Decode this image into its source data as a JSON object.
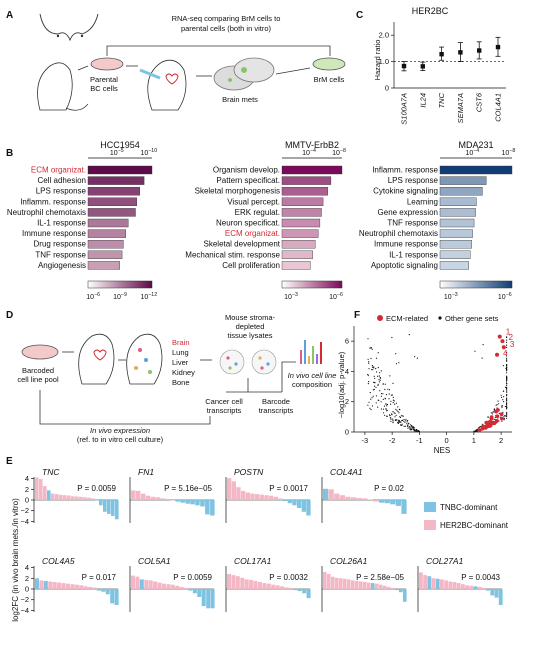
{
  "panels": {
    "A": {
      "letter": "A",
      "rnaseq_line1": "RNA-seq comparing BrM cells to",
      "rnaseq_line2": "parental cells (both in vitro)",
      "parental_label_1": "Parental",
      "parental_label_2": "BC cells",
      "brain_mets_label": "Brain mets",
      "brm_cells_label": "BrM cells"
    },
    "B": {
      "letter": "B"
    },
    "C": {
      "letter": "C"
    },
    "D": {
      "letter": "D",
      "pool_label_1": "Barcoded",
      "pool_label_2": "cell line pool",
      "organs": [
        "Brain",
        "Lung",
        "Liver",
        "Kidney",
        "Bone"
      ],
      "stroma_1": "Mouse stroma-",
      "stroma_2": "depleted",
      "stroma_3": "tissue lysates",
      "invivo_1": "In vivo cell line",
      "invivo_2": "composition",
      "cancer_1": "Cancer cell",
      "cancer_2": "transcripts",
      "barcode_1": "Barcode",
      "barcode_2": "transcripts",
      "expr_1": "In vivo expression",
      "expr_2": "(ref. to in vitro cell culture)"
    },
    "E": {
      "letter": "E"
    },
    "F": {
      "letter": "F"
    }
  },
  "panel_b": [
    {
      "title": "HCC1954",
      "terms": [
        "ECM organizat.",
        "Cell adhesion",
        "LPS response",
        "Inflamm. response",
        "Neutrophil chemotaxis",
        "IL-1 response",
        "Immune response",
        "Drug response",
        "TNF response",
        "Angiogenesis"
      ],
      "highlight": "ECM organizat.",
      "values": [
        10.5,
        9.2,
        8.5,
        8.0,
        7.8,
        6.6,
        6.2,
        5.8,
        5.6,
        5.2
      ],
      "axis_ticks": [
        "10^-5",
        "10^-10"
      ],
      "cbar_ticks": [
        "10^-6",
        "10^-9",
        "10^-12"
      ]
    },
    {
      "title": "MMTV-ErbB2",
      "terms": [
        "Organism develop.",
        "Pattern specificat.",
        "Skeletal morphogenesis",
        "Visual percept.",
        "ERK regulat.",
        "Neuron specificat.",
        "ECM organizat.",
        "Skeletal development",
        "Mechanical stim. response",
        "Cell proliferation"
      ],
      "highlight": "ECM organizat.",
      "values": [
        7.6,
        6.2,
        5.8,
        5.2,
        5.0,
        4.8,
        4.6,
        4.2,
        3.9,
        3.6
      ],
      "axis_ticks": [
        "10^-4",
        "10^-8"
      ],
      "cbar_ticks": [
        "10^-3",
        "10^-6"
      ]
    },
    {
      "title": "MDA231",
      "terms": [
        "Inflamm. response",
        "LPS response",
        "Cytokine signaling",
        "Learning",
        "Gene expression",
        "TNF response",
        "Neutrophil chemotaxis",
        "Immune response",
        "IL-1 response",
        "Apoptotic signaling"
      ],
      "highlight": "",
      "values": [
        9.5,
        6.1,
        5.6,
        4.8,
        4.7,
        4.5,
        4.3,
        4.2,
        4.0,
        3.8
      ],
      "axis_ticks": [
        "10^-4",
        "10^-8"
      ],
      "cbar_ticks": [
        "10^-3",
        "10^-6"
      ]
    }
  ],
  "chart_data": [
    {
      "type": "scatter",
      "panel": "C",
      "title": "HER2BC",
      "ylabel": "Hazard ratio",
      "ylim": [
        0,
        2.5
      ],
      "yticks": [
        "0",
        "1.0",
        "2.0"
      ],
      "categories": [
        "S100A7A",
        "IL24",
        "TNC",
        "SEMA7A",
        "CST6",
        "COL4A1"
      ],
      "values": [
        0.83,
        0.82,
        1.28,
        1.35,
        1.42,
        1.55
      ],
      "lower": [
        0.65,
        0.66,
        1.05,
        1.0,
        1.1,
        1.2
      ],
      "upper": [
        1.0,
        0.98,
        1.55,
        1.72,
        1.75,
        1.92
      ],
      "reference_line": 1.0
    },
    {
      "type": "scatter",
      "panel": "F",
      "xlabel": "NES",
      "ylabel": "−log10(adj. p-value)",
      "xlim": [
        -3.4,
        2.4
      ],
      "ylim": [
        0,
        7
      ],
      "xticks": [
        "-3",
        "-2",
        "-1",
        "0",
        "1",
        "2"
      ],
      "yticks": [
        "0",
        "2",
        "4",
        "6"
      ],
      "legend": [
        "ECM-related",
        "Other gene sets"
      ],
      "highlight_labels": [
        "1",
        "2",
        "3",
        "4"
      ]
    },
    {
      "type": "bar",
      "panel": "E",
      "ylabel": "log2FC (in vivo brain mets./in vitro)",
      "ylim": [
        -4,
        4
      ],
      "legend": [
        "TNBC-dominant",
        "HER2BC-dominant"
      ],
      "subplots": [
        {
          "gene": "TNC",
          "p": "P = 0.0059",
          "values": [
            4.2,
            3.9,
            2.6,
            1.8,
            1.2,
            1.1,
            0.95,
            0.9,
            0.85,
            0.7,
            0.65,
            0.6,
            0.5,
            0.45,
            0.3,
            -0.1,
            -1.0,
            -2.2,
            -2.6,
            -3.0,
            -3.6
          ],
          "types": [
            "H",
            "H",
            "H",
            "T",
            "H",
            "H",
            "H",
            "H",
            "H",
            "H",
            "H",
            "H",
            "H",
            "H",
            "H",
            "T",
            "T",
            "T",
            "T",
            "T",
            "T"
          ]
        },
        {
          "gene": "FN1",
          "p": "P = 5.16e−05",
          "values": [
            1.8,
            1.7,
            1.2,
            0.8,
            0.6,
            0.5,
            0.3,
            0.2,
            -0.1,
            -0.3,
            -0.5,
            -0.7,
            -0.8,
            -1.0,
            -1.2,
            -2.7,
            -2.9
          ],
          "types": [
            "H",
            "H",
            "H",
            "H",
            "H",
            "H",
            "H",
            "H",
            "H",
            "T",
            "T",
            "T",
            "T",
            "T",
            "T",
            "T",
            "T"
          ]
        },
        {
          "gene": "POSTN",
          "p": "P = 0.0017",
          "values": [
            4.1,
            3.5,
            2.4,
            1.7,
            1.4,
            1.2,
            1.1,
            1.0,
            0.9,
            0.8,
            0.6,
            0.3,
            -0.2,
            -0.6,
            -1.0,
            -1.5,
            -2.2,
            -2.9
          ],
          "types": [
            "H",
            "H",
            "H",
            "H",
            "H",
            "H",
            "H",
            "H",
            "H",
            "H",
            "H",
            "H",
            "T",
            "T",
            "T",
            "T",
            "T",
            "T"
          ]
        },
        {
          "gene": "COL4A1",
          "p": "P = 0.02",
          "values": [
            2.1,
            2.0,
            1.2,
            0.9,
            0.6,
            0.5,
            0.4,
            0.3,
            0.1,
            -0.3,
            -0.5,
            -0.6,
            -0.8,
            -1.1,
            -2.6
          ],
          "types": [
            "T",
            "H",
            "H",
            "H",
            "H",
            "H",
            "H",
            "H",
            "H",
            "H",
            "T",
            "T",
            "T",
            "T",
            "T"
          ]
        },
        {
          "gene": "COL4A5",
          "p": "P = 0.017",
          "values": [
            2.0,
            1.6,
            1.5,
            1.4,
            1.3,
            1.2,
            1.1,
            1.0,
            0.9,
            0.8,
            0.7,
            0.5,
            0.4,
            0.3,
            -0.3,
            -0.5,
            -1.0,
            -2.7,
            -3.0
          ],
          "types": [
            "T",
            "H",
            "T",
            "H",
            "H",
            "H",
            "H",
            "H",
            "H",
            "H",
            "H",
            "H",
            "H",
            "H",
            "T",
            "T",
            "T",
            "T",
            "T"
          ]
        },
        {
          "gene": "COL5A1",
          "p": "P = 0.0059",
          "values": [
            2.5,
            2.3,
            1.8,
            1.7,
            1.6,
            1.4,
            1.2,
            1.0,
            0.9,
            0.8,
            0.6,
            0.4,
            0.2,
            -0.3,
            -0.8,
            -1.5,
            -3.2,
            -3.6,
            -3.6
          ],
          "types": [
            "H",
            "H",
            "T",
            "H",
            "H",
            "H",
            "H",
            "H",
            "H",
            "H",
            "H",
            "H",
            "H",
            "T",
            "T",
            "T",
            "T",
            "T",
            "T"
          ]
        },
        {
          "gene": "COL17A1",
          "p": "P = 0.0032",
          "values": [
            2.8,
            2.6,
            2.4,
            2.1,
            1.8,
            1.7,
            1.5,
            1.3,
            1.1,
            1.0,
            0.8,
            0.7,
            0.5,
            0.3,
            0.2,
            -0.2,
            -0.4,
            -0.8,
            -1.7
          ],
          "types": [
            "H",
            "H",
            "H",
            "H",
            "H",
            "H",
            "H",
            "H",
            "H",
            "H",
            "H",
            "H",
            "H",
            "H",
            "H",
            "T",
            "T",
            "T",
            "T"
          ]
        },
        {
          "gene": "COL26A1",
          "p": "P = 2.58e−05",
          "values": [
            3.2,
            2.8,
            2.3,
            2.1,
            2.0,
            1.9,
            1.8,
            1.6,
            1.5,
            1.4,
            1.3,
            1.2,
            1.1,
            1.0,
            0.8,
            0.6,
            0.4,
            0.2,
            -0.2,
            -0.6,
            -2.4
          ],
          "types": [
            "H",
            "H",
            "H",
            "H",
            "H",
            "H",
            "H",
            "H",
            "H",
            "H",
            "H",
            "H",
            "T",
            "H",
            "H",
            "H",
            "H",
            "H",
            "T",
            "T",
            "T"
          ]
        },
        {
          "gene": "COL27A1",
          "p": "P = 0.0043",
          "values": [
            3.1,
            2.6,
            2.4,
            2.0,
            1.9,
            1.8,
            1.6,
            1.4,
            1.3,
            1.1,
            0.9,
            0.7,
            0.6,
            0.5,
            0.4,
            0.2,
            -0.3,
            -1.2,
            -1.6,
            -3.0
          ],
          "types": [
            "H",
            "H",
            "T",
            "H",
            "T",
            "H",
            "H",
            "H",
            "H",
            "H",
            "H",
            "H",
            "H",
            "T",
            "H",
            "H",
            "T",
            "T",
            "T",
            "T"
          ]
        }
      ]
    }
  ],
  "colors": {
    "her2": "#f4b7c6",
    "tnbc": "#7ec3e2",
    "ecm_red": "#d42a35",
    "cmap_b1_dark": "#5c0a4a",
    "cmap_b3_dark": "#123c73"
  }
}
